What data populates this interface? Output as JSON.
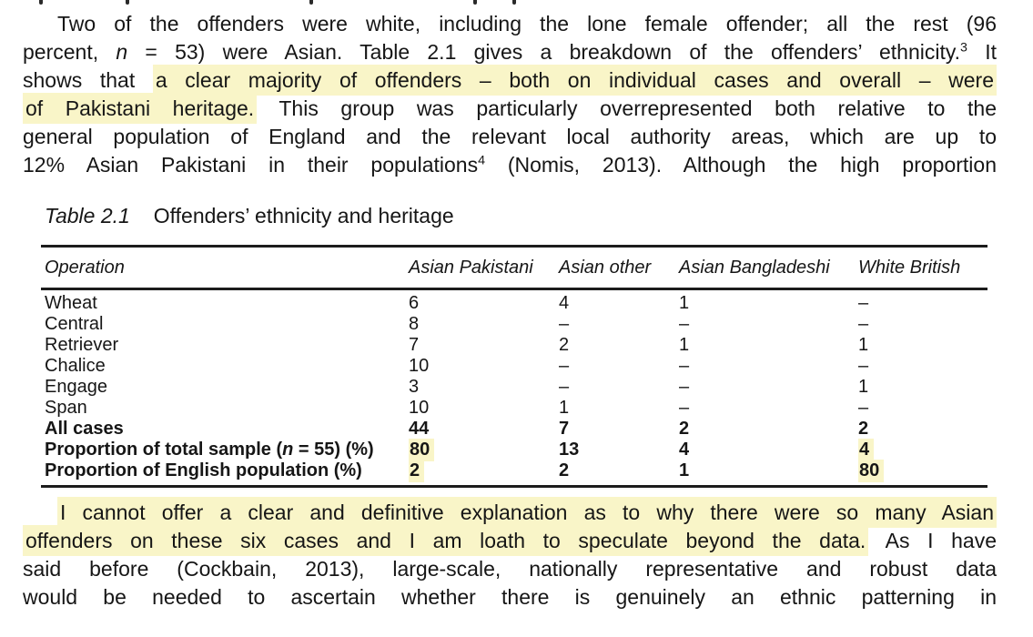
{
  "colors": {
    "highlight": "#f9f5c8",
    "text": "#161616",
    "rule": "#1c1c1c",
    "background": "#ffffff"
  },
  "top_fragments": [
    43,
    138,
    340,
    520,
    563
  ],
  "paragraph_top": {
    "lines": [
      [
        {
          "t": "Two of the offenders were white, including the lone female offender; all the rest (96"
        }
      ],
      [
        {
          "t": "percent, "
        },
        {
          "t": "n",
          "i": true
        },
        {
          "t": " = 53) were Asian. Table 2.1 gives a breakdown of the offenders’ ethnicity."
        },
        {
          "t": "3",
          "sup": true
        },
        {
          "t": " It"
        }
      ],
      [
        {
          "t": "shows that "
        },
        {
          "t": "a clear majority of offenders – both on individual cases and overall – were",
          "h": true
        }
      ],
      [
        {
          "t": "of Pakistani heritage.",
          "h": true
        },
        {
          "t": " This group was particularly overrepresented both relative to the"
        }
      ],
      [
        {
          "t": "general population of England and the relevant local authority areas, which are up to"
        }
      ],
      [
        {
          "t": "12% Asian Pakistani in their populations"
        },
        {
          "t": "4",
          "sup": true
        },
        {
          "t": " (Nomis, 2013). Although the high proportion"
        }
      ]
    ]
  },
  "table": {
    "title_label": "Table 2.1",
    "title_text": "Offenders’ ethnicity and heritage",
    "columns": [
      "Operation",
      "Asian Pakistani",
      "Asian other",
      "Asian Bangladeshi",
      "White British"
    ],
    "rows": [
      {
        "name": [
          {
            "t": "Wheat"
          }
        ],
        "values": [
          "6",
          "4",
          "1",
          "–"
        ]
      },
      {
        "name": [
          {
            "t": "Central"
          }
        ],
        "values": [
          "8",
          "–",
          "–",
          "–"
        ]
      },
      {
        "name": [
          {
            "t": "Retriever"
          }
        ],
        "values": [
          "7",
          "2",
          "1",
          "1"
        ]
      },
      {
        "name": [
          {
            "t": "Chalice"
          }
        ],
        "values": [
          "10",
          "–",
          "–",
          "–"
        ]
      },
      {
        "name": [
          {
            "t": "Engage"
          }
        ],
        "values": [
          "3",
          "–",
          "–",
          "1"
        ]
      },
      {
        "name": [
          {
            "t": "Span"
          }
        ],
        "values": [
          "10",
          "1",
          "–",
          "–"
        ]
      },
      {
        "name": [
          {
            "t": "All cases"
          }
        ],
        "bold": true,
        "values": [
          "44",
          "7",
          "2",
          "2"
        ]
      },
      {
        "name": [
          {
            "t": "Proportion of total sample ("
          },
          {
            "t": "n",
            "i": true
          },
          {
            "t": " = 55) (%)"
          }
        ],
        "bold": true,
        "values": [
          "80",
          "13",
          "4",
          "4"
        ],
        "hl": [
          true,
          false,
          false,
          true
        ]
      },
      {
        "name": [
          {
            "t": "Proportion of English population (%)"
          }
        ],
        "bold": true,
        "values": [
          "2",
          "2",
          "1",
          "80"
        ],
        "hl": [
          true,
          false,
          false,
          true
        ]
      }
    ]
  },
  "paragraph_bottom": {
    "lines": [
      [
        {
          "t": "I cannot offer a clear and definitive explanation as to why there were so many Asian",
          "h": true
        }
      ],
      [
        {
          "t": "offenders on these six cases and I am loath to speculate beyond the data.",
          "h": true
        },
        {
          "t": " As I have"
        }
      ],
      [
        {
          "t": "said before (Cockbain, 2013), large-scale, nationally representative and robust data"
        }
      ],
      [
        {
          "t": "would be needed to ascertain whether there is genuinely an ethnic patterning in"
        }
      ]
    ]
  }
}
